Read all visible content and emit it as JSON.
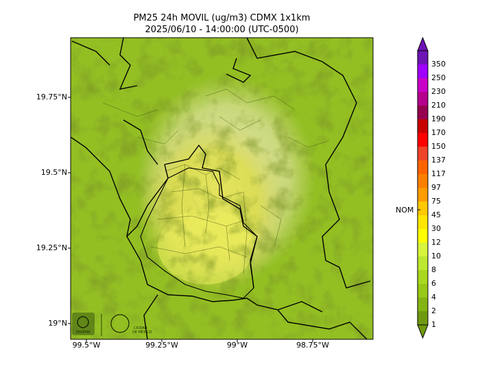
{
  "title": "PM25 24h MOVIL (ug/m3) CDMX 1x1km",
  "subtitle": "2025/06/10 - 14:00:00 (UTC-0500)",
  "lat_labels": [
    "19.75°N",
    "19.5°N",
    "19.25°N",
    "19°N"
  ],
  "lon_labels": [
    "99.5°W",
    "99.25°W",
    "99°W",
    "98.75°W"
  ],
  "colorbar": {
    "levels": [
      "1",
      "2",
      "4",
      "6",
      "8",
      "10",
      "12",
      "30",
      "45",
      "75",
      "97",
      "117",
      "137",
      "150",
      "170",
      "190",
      "210",
      "230",
      "250",
      "350"
    ],
    "colors": [
      "#6f9a10",
      "#84b414",
      "#98c818",
      "#a8d820",
      "#bce830",
      "#d8f43c",
      "#ffff00",
      "#ffe600",
      "#ffc800",
      "#ff9c00",
      "#ff8000",
      "#ff6400",
      "#f04428",
      "#ff0000",
      "#c80000",
      "#960050",
      "#b4008c",
      "#c800c8",
      "#a000ff",
      "#6e14b4"
    ],
    "nom_label": "NOM"
  },
  "logos": [
    "sedema-logo",
    "ciudad-de-mexico-logo"
  ]
}
